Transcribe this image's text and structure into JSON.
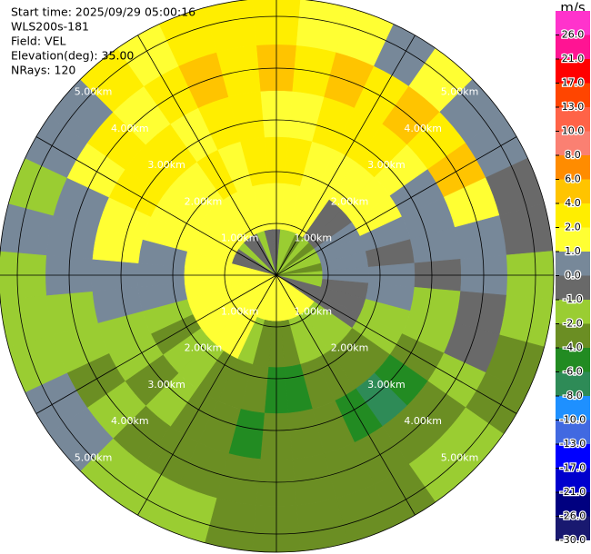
{
  "chart_data": {
    "type": "polar",
    "header": [
      "Start time: 2025/09/29 05:00:16",
      "WLS200s-181",
      "Field: VEL",
      "Elevation(deg): 35.00",
      "NRays: 120"
    ],
    "colorbar_title": "m/s",
    "colorbar_ticks": [
      {
        "value": 26,
        "label": "26.0"
      },
      {
        "value": 21,
        "label": "21.0"
      },
      {
        "value": 17,
        "label": "17.0"
      },
      {
        "value": 13,
        "label": "13.0"
      },
      {
        "value": 10,
        "label": "10.0"
      },
      {
        "value": 8,
        "label": "8.0"
      },
      {
        "value": 6,
        "label": "6.0"
      },
      {
        "value": 4,
        "label": "4.0"
      },
      {
        "value": 2,
        "label": "2.0"
      },
      {
        "value": 1,
        "label": "1.0"
      },
      {
        "value": 0,
        "label": "0.0"
      },
      {
        "value": -1,
        "label": "-1.0"
      },
      {
        "value": -2,
        "label": "-2.0"
      },
      {
        "value": -4,
        "label": "-4.0"
      },
      {
        "value": -6,
        "label": "-6.0"
      },
      {
        "value": -8,
        "label": "-8.0"
      },
      {
        "value": -10,
        "label": "-10.0"
      },
      {
        "value": -13,
        "label": "-13.0"
      },
      {
        "value": -17,
        "label": "-17.0"
      },
      {
        "value": -21,
        "label": "-21.0"
      },
      {
        "value": -26,
        "label": "-26.0"
      },
      {
        "value": -30,
        "label": "-30.0"
      }
    ],
    "colors": [
      "#ff33cc",
      "#ff1493",
      "#ff0000",
      "#ff4500",
      "#ff6347",
      "#fa8072",
      "#ff8c00",
      "#ffc400",
      "#ffee00",
      "#ffff33",
      "#778899",
      "#696969",
      "#9acd32",
      "#6b8e23",
      "#228b22",
      "#2e8b57",
      "#1e90ff",
      "#4169e1",
      "#0000ff",
      "#0000cd",
      "#000080",
      "#191970"
    ],
    "rings": [
      {
        "value": 1,
        "label": "1.00km"
      },
      {
        "value": 2,
        "label": "2.00km"
      },
      {
        "value": 3,
        "label": "3.00km"
      },
      {
        "value": 4,
        "label": "4.00km"
      },
      {
        "value": 5,
        "label": "5.00km"
      }
    ],
    "velocity": [
      [
        -1,
        1.5,
        2.5,
        1.5,
        4,
        3
      ],
      [
        -1.5,
        1.5,
        2.5,
        1.5,
        3,
        1.5
      ],
      [
        -1.5,
        1.5,
        1.5,
        2.5,
        4,
        1.5
      ],
      [
        -2.5,
        1.5,
        1.5,
        2.5,
        3,
        0.5
      ],
      [
        -1.5,
        -1,
        1.5,
        2.5,
        4,
        1.5
      ],
      [
        -2.5,
        -1,
        1.5,
        1.5,
        3,
        0.5
      ],
      [
        -1.5,
        0.5,
        1.5,
        0.5,
        4,
        0.5
      ],
      [
        -1.5,
        0.5,
        0.5,
        0.5,
        1.5,
        -0.5
      ],
      [
        -2.5,
        0.5,
        -0.5,
        0.5,
        0.5,
        -0.5
      ],
      [
        -1.5,
        0.5,
        0.5,
        -0.5,
        0.5,
        -1.5
      ],
      [
        -1.5,
        -0.5,
        0.5,
        -1.5,
        -0.5,
        -1.5
      ],
      [
        -1,
        -0.5,
        -1.5,
        -1.5,
        -0.5,
        -3
      ],
      [
        -1,
        -0.5,
        -1.5,
        -3,
        -1.5,
        -3
      ],
      [
        1.5,
        -1.5,
        -3,
        -5,
        -3,
        -1.5
      ],
      [
        1.5,
        -1.5,
        -3,
        -7,
        -3,
        -1.5
      ],
      [
        1.5,
        -1.5,
        -3,
        -5,
        -3,
        -3
      ],
      [
        1.5,
        -1.5,
        -3,
        -3,
        -3,
        -3
      ],
      [
        1.5,
        -3,
        -5,
        -3,
        -3,
        -3
      ],
      [
        1.5,
        -3,
        -5,
        -3,
        -3,
        -3
      ],
      [
        1.5,
        -3,
        -3,
        -5,
        -3,
        -3
      ],
      [
        1.5,
        -1.5,
        -3,
        -3,
        -3,
        -1.5
      ],
      [
        1.5,
        1.5,
        -3,
        -3,
        -3,
        -1.5
      ],
      [
        1.5,
        1.5,
        -1.5,
        -1.5,
        -3,
        -1.5
      ],
      [
        1.5,
        1.5,
        -1.5,
        -3,
        -1.5,
        0.5
      ],
      [
        1.5,
        1.5,
        -3,
        -1.5,
        -3,
        0.5
      ],
      [
        1.5,
        1.5,
        -1.5,
        -1.5,
        -1.5,
        -1.5
      ],
      [
        1.5,
        1.5,
        0.5,
        0.5,
        -1.5,
        -1.5
      ],
      [
        1.5,
        1.5,
        0.5,
        0.5,
        0.5,
        -1.5
      ],
      [
        1.5,
        1.5,
        0.5,
        1.5,
        0.5,
        0.5
      ],
      [
        -1,
        1.5,
        1.5,
        1.5,
        0.5,
        -1.5
      ],
      [
        -1,
        1.5,
        1.5,
        2.5,
        1.5,
        0.5
      ],
      [
        -1.5,
        1.5,
        1.5,
        2.5,
        3,
        0.5
      ],
      [
        -1,
        1.5,
        1.5,
        2.5,
        1.5,
        3
      ],
      [
        -1,
        1.5,
        2.5,
        1.5,
        3,
        1.5
      ],
      [
        -1.5,
        1.5,
        1.5,
        2.5,
        4,
        3
      ],
      [
        -1,
        1.5,
        2.5,
        2.5,
        3,
        3
      ]
    ]
  }
}
